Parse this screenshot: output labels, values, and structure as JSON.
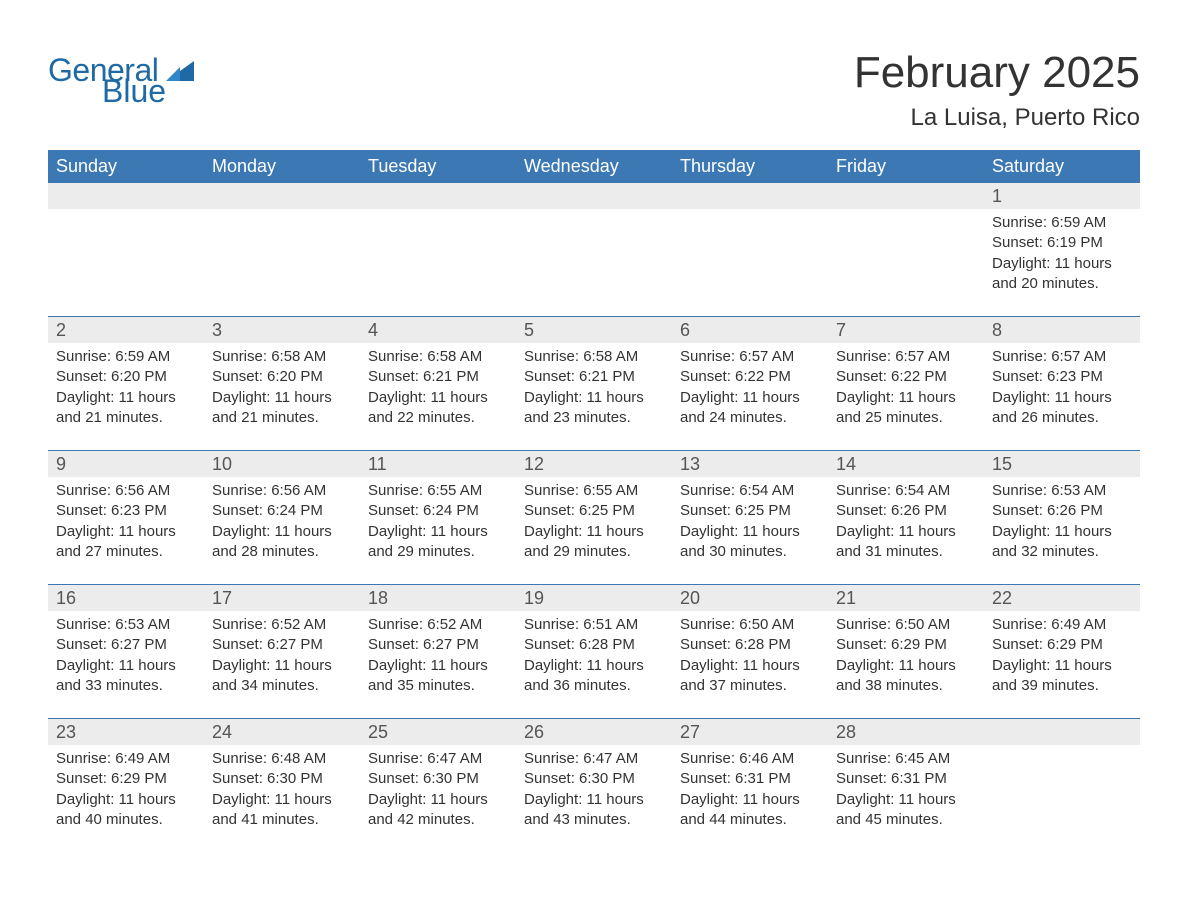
{
  "brand": {
    "word1": "General",
    "word2": "Blue",
    "logo_color": "#1f6aa5"
  },
  "title": "February 2025",
  "location": "La Luisa, Puerto Rico",
  "colors": {
    "header_bg": "#3c78b4",
    "header_text": "#ffffff",
    "daynum_bg": "#ececec",
    "daynum_border": "#3c78b4",
    "body_text": "#333333",
    "background": "#ffffff"
  },
  "weekdays": [
    "Sunday",
    "Monday",
    "Tuesday",
    "Wednesday",
    "Thursday",
    "Friday",
    "Saturday"
  ],
  "weeks": [
    {
      "nums": [
        "",
        "",
        "",
        "",
        "",
        "",
        "1"
      ],
      "cells": [
        null,
        null,
        null,
        null,
        null,
        null,
        {
          "sunrise": "Sunrise: 6:59 AM",
          "sunset": "Sunset: 6:19 PM",
          "d1": "Daylight: 11 hours",
          "d2": "and 20 minutes."
        }
      ]
    },
    {
      "nums": [
        "2",
        "3",
        "4",
        "5",
        "6",
        "7",
        "8"
      ],
      "cells": [
        {
          "sunrise": "Sunrise: 6:59 AM",
          "sunset": "Sunset: 6:20 PM",
          "d1": "Daylight: 11 hours",
          "d2": "and 21 minutes."
        },
        {
          "sunrise": "Sunrise: 6:58 AM",
          "sunset": "Sunset: 6:20 PM",
          "d1": "Daylight: 11 hours",
          "d2": "and 21 minutes."
        },
        {
          "sunrise": "Sunrise: 6:58 AM",
          "sunset": "Sunset: 6:21 PM",
          "d1": "Daylight: 11 hours",
          "d2": "and 22 minutes."
        },
        {
          "sunrise": "Sunrise: 6:58 AM",
          "sunset": "Sunset: 6:21 PM",
          "d1": "Daylight: 11 hours",
          "d2": "and 23 minutes."
        },
        {
          "sunrise": "Sunrise: 6:57 AM",
          "sunset": "Sunset: 6:22 PM",
          "d1": "Daylight: 11 hours",
          "d2": "and 24 minutes."
        },
        {
          "sunrise": "Sunrise: 6:57 AM",
          "sunset": "Sunset: 6:22 PM",
          "d1": "Daylight: 11 hours",
          "d2": "and 25 minutes."
        },
        {
          "sunrise": "Sunrise: 6:57 AM",
          "sunset": "Sunset: 6:23 PM",
          "d1": "Daylight: 11 hours",
          "d2": "and 26 minutes."
        }
      ]
    },
    {
      "nums": [
        "9",
        "10",
        "11",
        "12",
        "13",
        "14",
        "15"
      ],
      "cells": [
        {
          "sunrise": "Sunrise: 6:56 AM",
          "sunset": "Sunset: 6:23 PM",
          "d1": "Daylight: 11 hours",
          "d2": "and 27 minutes."
        },
        {
          "sunrise": "Sunrise: 6:56 AM",
          "sunset": "Sunset: 6:24 PM",
          "d1": "Daylight: 11 hours",
          "d2": "and 28 minutes."
        },
        {
          "sunrise": "Sunrise: 6:55 AM",
          "sunset": "Sunset: 6:24 PM",
          "d1": "Daylight: 11 hours",
          "d2": "and 29 minutes."
        },
        {
          "sunrise": "Sunrise: 6:55 AM",
          "sunset": "Sunset: 6:25 PM",
          "d1": "Daylight: 11 hours",
          "d2": "and 29 minutes."
        },
        {
          "sunrise": "Sunrise: 6:54 AM",
          "sunset": "Sunset: 6:25 PM",
          "d1": "Daylight: 11 hours",
          "d2": "and 30 minutes."
        },
        {
          "sunrise": "Sunrise: 6:54 AM",
          "sunset": "Sunset: 6:26 PM",
          "d1": "Daylight: 11 hours",
          "d2": "and 31 minutes."
        },
        {
          "sunrise": "Sunrise: 6:53 AM",
          "sunset": "Sunset: 6:26 PM",
          "d1": "Daylight: 11 hours",
          "d2": "and 32 minutes."
        }
      ]
    },
    {
      "nums": [
        "16",
        "17",
        "18",
        "19",
        "20",
        "21",
        "22"
      ],
      "cells": [
        {
          "sunrise": "Sunrise: 6:53 AM",
          "sunset": "Sunset: 6:27 PM",
          "d1": "Daylight: 11 hours",
          "d2": "and 33 minutes."
        },
        {
          "sunrise": "Sunrise: 6:52 AM",
          "sunset": "Sunset: 6:27 PM",
          "d1": "Daylight: 11 hours",
          "d2": "and 34 minutes."
        },
        {
          "sunrise": "Sunrise: 6:52 AM",
          "sunset": "Sunset: 6:27 PM",
          "d1": "Daylight: 11 hours",
          "d2": "and 35 minutes."
        },
        {
          "sunrise": "Sunrise: 6:51 AM",
          "sunset": "Sunset: 6:28 PM",
          "d1": "Daylight: 11 hours",
          "d2": "and 36 minutes."
        },
        {
          "sunrise": "Sunrise: 6:50 AM",
          "sunset": "Sunset: 6:28 PM",
          "d1": "Daylight: 11 hours",
          "d2": "and 37 minutes."
        },
        {
          "sunrise": "Sunrise: 6:50 AM",
          "sunset": "Sunset: 6:29 PM",
          "d1": "Daylight: 11 hours",
          "d2": "and 38 minutes."
        },
        {
          "sunrise": "Sunrise: 6:49 AM",
          "sunset": "Sunset: 6:29 PM",
          "d1": "Daylight: 11 hours",
          "d2": "and 39 minutes."
        }
      ]
    },
    {
      "nums": [
        "23",
        "24",
        "25",
        "26",
        "27",
        "28",
        ""
      ],
      "cells": [
        {
          "sunrise": "Sunrise: 6:49 AM",
          "sunset": "Sunset: 6:29 PM",
          "d1": "Daylight: 11 hours",
          "d2": "and 40 minutes."
        },
        {
          "sunrise": "Sunrise: 6:48 AM",
          "sunset": "Sunset: 6:30 PM",
          "d1": "Daylight: 11 hours",
          "d2": "and 41 minutes."
        },
        {
          "sunrise": "Sunrise: 6:47 AM",
          "sunset": "Sunset: 6:30 PM",
          "d1": "Daylight: 11 hours",
          "d2": "and 42 minutes."
        },
        {
          "sunrise": "Sunrise: 6:47 AM",
          "sunset": "Sunset: 6:30 PM",
          "d1": "Daylight: 11 hours",
          "d2": "and 43 minutes."
        },
        {
          "sunrise": "Sunrise: 6:46 AM",
          "sunset": "Sunset: 6:31 PM",
          "d1": "Daylight: 11 hours",
          "d2": "and 44 minutes."
        },
        {
          "sunrise": "Sunrise: 6:45 AM",
          "sunset": "Sunset: 6:31 PM",
          "d1": "Daylight: 11 hours",
          "d2": "and 45 minutes."
        },
        null
      ]
    }
  ]
}
